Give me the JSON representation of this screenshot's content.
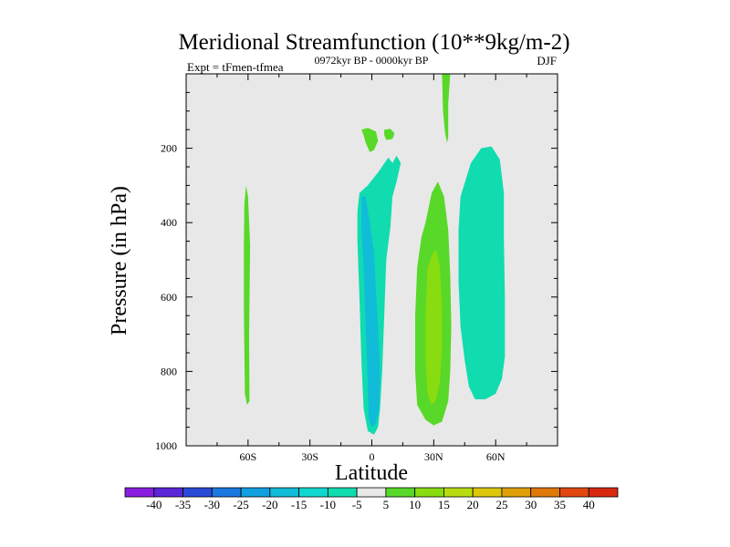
{
  "chart_data": {
    "type": "heatmap",
    "title": "Meridional Streamfunction (10**9kg/m-2)",
    "left_label": "Expt = tFmen-tfmea",
    "center_label": "0972kyr BP - 0000kyr BP",
    "right_label": "DJF",
    "xlabel": "Latitude",
    "ylabel": "Pressure (in hPa)",
    "xlim": [
      -90,
      90
    ],
    "ylim": [
      1000,
      0
    ],
    "x_ticks": [
      {
        "value": -60,
        "label": "60S"
      },
      {
        "value": -30,
        "label": "30S"
      },
      {
        "value": 0,
        "label": "0"
      },
      {
        "value": 30,
        "label": "30N"
      },
      {
        "value": 60,
        "label": "60N"
      }
    ],
    "y_ticks": [
      {
        "value": 200,
        "label": "200"
      },
      {
        "value": 400,
        "label": "400"
      },
      {
        "value": 600,
        "label": "600"
      },
      {
        "value": 800,
        "label": "800"
      },
      {
        "value": 1000,
        "label": "1000"
      }
    ],
    "background_color": "#e8e8e8",
    "colorbar": {
      "levels": [
        "-40",
        "-35",
        "-30",
        "-25",
        "-20",
        "-15",
        "-10",
        "-5",
        "5",
        "10",
        "15",
        "20",
        "25",
        "30",
        "35",
        "40"
      ],
      "colors": [
        "#8a1ee0",
        "#5a26d8",
        "#2a4ad8",
        "#1a78e0",
        "#10a0e0",
        "#10bcd8",
        "#10d8d0",
        "#10dcb0",
        "#e8e8e8",
        "#58d828",
        "#88dc10",
        "#b8dc10",
        "#dcc808",
        "#e0a008",
        "#e07808",
        "#e04810",
        "#d82810"
      ]
    },
    "regions": [
      {
        "name": "sh-60s-positive",
        "band": 10,
        "color": "#58d828",
        "points": [
          [
            -61,
            300
          ],
          [
            -60,
            330
          ],
          [
            -59,
            460
          ],
          [
            -59.5,
            700
          ],
          [
            -59.3,
            880
          ],
          [
            -60.5,
            890
          ],
          [
            -61.5,
            860
          ],
          [
            -62,
            650
          ],
          [
            -62,
            450
          ],
          [
            -61.8,
            350
          ]
        ]
      },
      {
        "name": "upper-positive-left",
        "band": 10,
        "color": "#58d828",
        "points": [
          [
            -5,
            150
          ],
          [
            -2,
            145
          ],
          [
            2,
            155
          ],
          [
            3,
            180
          ],
          [
            1,
            205
          ],
          [
            -1,
            210
          ],
          [
            -3,
            185
          ],
          [
            -4,
            165
          ]
        ]
      },
      {
        "name": "upper-positive-right",
        "band": 10,
        "color": "#58d828",
        "points": [
          [
            6,
            150
          ],
          [
            9,
            148
          ],
          [
            11,
            160
          ],
          [
            10,
            175
          ],
          [
            7,
            178
          ],
          [
            6,
            165
          ]
        ]
      },
      {
        "name": "upper-positive-jet",
        "band": 10,
        "color": "#58d828",
        "points": [
          [
            34,
            0
          ],
          [
            38,
            0
          ],
          [
            37,
            80
          ],
          [
            37,
            170
          ],
          [
            36.5,
            185
          ],
          [
            35.5,
            160
          ],
          [
            34.5,
            100
          ]
        ]
      },
      {
        "name": "equatorial-negative-outer",
        "band": -5,
        "color": "#10dcb0",
        "points": [
          [
            -6,
            320
          ],
          [
            -2,
            300
          ],
          [
            3,
            265
          ],
          [
            8,
            225
          ],
          [
            10,
            240
          ],
          [
            12,
            220
          ],
          [
            14,
            240
          ],
          [
            12,
            290
          ],
          [
            10,
            330
          ],
          [
            9,
            410
          ],
          [
            7,
            500
          ],
          [
            6,
            650
          ],
          [
            5,
            800
          ],
          [
            4,
            900
          ],
          [
            3,
            950
          ],
          [
            1,
            970
          ],
          [
            -2,
            960
          ],
          [
            -4,
            900
          ],
          [
            -5,
            780
          ],
          [
            -6,
            600
          ],
          [
            -7,
            450
          ],
          [
            -7,
            370
          ]
        ]
      },
      {
        "name": "equatorial-negative-inner",
        "band": -10,
        "color": "#10bcd8",
        "points": [
          [
            -5,
            330
          ],
          [
            -3,
            330
          ],
          [
            -1,
            400
          ],
          [
            1,
            480
          ],
          [
            2,
            580
          ],
          [
            3,
            680
          ],
          [
            4,
            800
          ],
          [
            3.5,
            900
          ],
          [
            2,
            940
          ],
          [
            0,
            950
          ],
          [
            -1.5,
            930
          ],
          [
            -2,
            830
          ],
          [
            -3,
            680
          ],
          [
            -4,
            520
          ],
          [
            -5,
            420
          ]
        ]
      },
      {
        "name": "nh-30n-positive-outer",
        "band": 10,
        "color": "#58d828",
        "points": [
          [
            26,
            400
          ],
          [
            29,
            320
          ],
          [
            32,
            290
          ],
          [
            35,
            330
          ],
          [
            37,
            420
          ],
          [
            38,
            540
          ],
          [
            38.5,
            680
          ],
          [
            38,
            800
          ],
          [
            37,
            880
          ],
          [
            34,
            935
          ],
          [
            30,
            945
          ],
          [
            26,
            930
          ],
          [
            22,
            890
          ],
          [
            21,
            800
          ],
          [
            21,
            650
          ],
          [
            22,
            520
          ],
          [
            24,
            440
          ]
        ]
      },
      {
        "name": "nh-30n-positive-inner",
        "band": 15,
        "color": "#88dc10",
        "points": [
          [
            27,
            520
          ],
          [
            29,
            490
          ],
          [
            31,
            470
          ],
          [
            33,
            520
          ],
          [
            34,
            620
          ],
          [
            34,
            740
          ],
          [
            33,
            830
          ],
          [
            31,
            880
          ],
          [
            29,
            890
          ],
          [
            27,
            860
          ],
          [
            26,
            770
          ],
          [
            26,
            640
          ]
        ]
      },
      {
        "name": "nh-60n-negative",
        "band": -5,
        "color": "#10dcb0",
        "points": [
          [
            43,
            330
          ],
          [
            48,
            240
          ],
          [
            53,
            200
          ],
          [
            58,
            195
          ],
          [
            62,
            230
          ],
          [
            64,
            320
          ],
          [
            64,
            440
          ],
          [
            64.5,
            600
          ],
          [
            64.5,
            760
          ],
          [
            63,
            820
          ],
          [
            60,
            860
          ],
          [
            55,
            875
          ],
          [
            50,
            875
          ],
          [
            47,
            840
          ],
          [
            45,
            770
          ],
          [
            43,
            680
          ],
          [
            42,
            560
          ],
          [
            42,
            420
          ]
        ]
      }
    ]
  }
}
